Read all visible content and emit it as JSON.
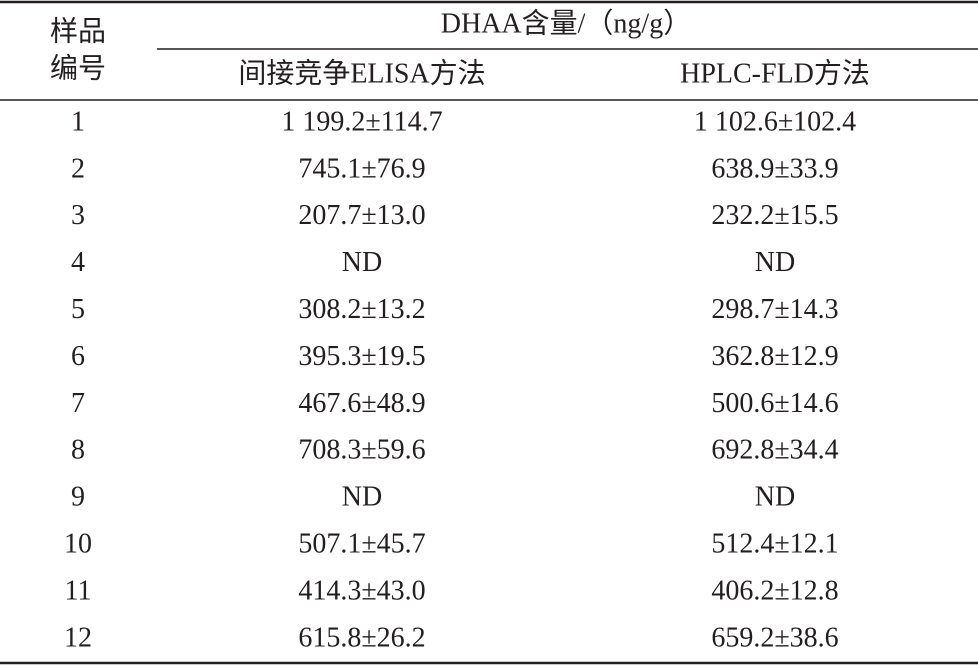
{
  "table": {
    "header": {
      "sample": [
        "样品",
        "编号"
      ],
      "group": "DHAA含量/（ng/g）",
      "columns": [
        "间接竞争ELISA方法",
        "HPLC-FLD方法"
      ]
    },
    "rows": [
      [
        "1",
        "1 199.2±114.7",
        "1 102.6±102.4"
      ],
      [
        "2",
        "745.1±76.9",
        "638.9±33.9"
      ],
      [
        "3",
        "207.7±13.0",
        "232.2±15.5"
      ],
      [
        "4",
        "ND",
        "ND"
      ],
      [
        "5",
        "308.2±13.2",
        "298.7±14.3"
      ],
      [
        "6",
        "395.3±19.5",
        "362.8±12.9"
      ],
      [
        "7",
        "467.6±48.9",
        "500.6±14.6"
      ],
      [
        "8",
        "708.3±59.6",
        "692.8±34.4"
      ],
      [
        "9",
        "ND",
        "ND"
      ],
      [
        "10",
        "507.1±45.7",
        "512.4±12.1"
      ],
      [
        "11",
        "414.3±43.0",
        "406.2±12.8"
      ],
      [
        "12",
        "615.8±26.2",
        "659.2±38.6"
      ]
    ]
  }
}
